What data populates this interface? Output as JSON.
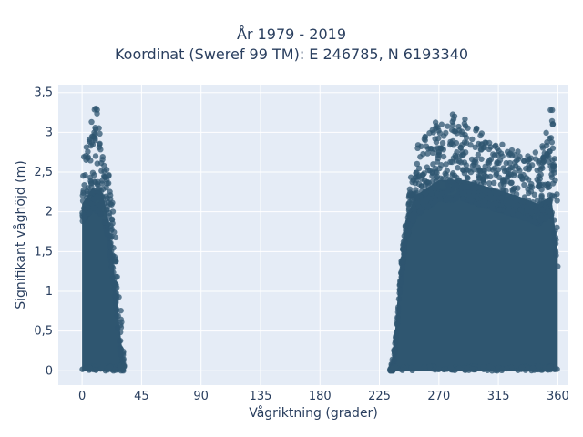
{
  "chart_data": {
    "type": "scatter",
    "title_line1": "År 1979 - 2019",
    "title_line2": "Koordinat (Sweref 99 TM): E 246785, N 6193340",
    "xlabel": "Vågriktning (grader)",
    "ylabel": "Signifikant våghöjd (m)",
    "xlim": [
      -18,
      368
    ],
    "ylim": [
      -0.18,
      3.6
    ],
    "xticks": [
      0,
      45,
      90,
      135,
      180,
      225,
      270,
      315,
      360
    ],
    "xtick_labels": [
      "0",
      "45",
      "90",
      "135",
      "180",
      "225",
      "270",
      "315",
      "360"
    ],
    "yticks": [
      0,
      0.5,
      1,
      1.5,
      2,
      2.5,
      3,
      3.5
    ],
    "ytick_labels": [
      "0",
      "0,5",
      "1",
      "1,5",
      "2",
      "2,5",
      "3",
      "3,5"
    ],
    "grid": true,
    "marker_color": "#2f5670",
    "background_color": "#e5ecf6",
    "clusters": [
      {
        "x_range": [
          0,
          32
        ],
        "max_height_profile": [
          [
            0,
            2.6
          ],
          [
            4,
            2.9
          ],
          [
            8,
            3.45
          ],
          [
            12,
            3.3
          ],
          [
            16,
            2.7
          ],
          [
            20,
            2.5
          ],
          [
            24,
            2.0
          ],
          [
            28,
            1.1
          ],
          [
            32,
            0.2
          ]
        ],
        "dense_height_profile": [
          [
            0,
            2.1
          ],
          [
            8,
            2.3
          ],
          [
            16,
            2.2
          ],
          [
            20,
            1.9
          ],
          [
            24,
            1.3
          ],
          [
            28,
            0.6
          ],
          [
            32,
            0.05
          ]
        ]
      },
      {
        "x_range": [
          233,
          360
        ],
        "max_height_profile": [
          [
            233,
            0.05
          ],
          [
            238,
            0.5
          ],
          [
            242,
            1.5
          ],
          [
            248,
            2.4
          ],
          [
            255,
            2.9
          ],
          [
            265,
            3.1
          ],
          [
            280,
            3.3
          ],
          [
            295,
            3.1
          ],
          [
            310,
            2.9
          ],
          [
            325,
            2.8
          ],
          [
            340,
            2.7
          ],
          [
            350,
            3.0
          ],
          [
            355,
            3.45
          ],
          [
            360,
            2.5
          ]
        ],
        "dense_height_profile": [
          [
            233,
            0.0
          ],
          [
            236,
            0.3
          ],
          [
            240,
            1.2
          ],
          [
            245,
            1.9
          ],
          [
            252,
            2.2
          ],
          [
            270,
            2.4
          ],
          [
            290,
            2.4
          ],
          [
            310,
            2.3
          ],
          [
            330,
            2.2
          ],
          [
            345,
            2.1
          ],
          [
            355,
            2.2
          ],
          [
            360,
            1.5
          ]
        ]
      }
    ]
  }
}
